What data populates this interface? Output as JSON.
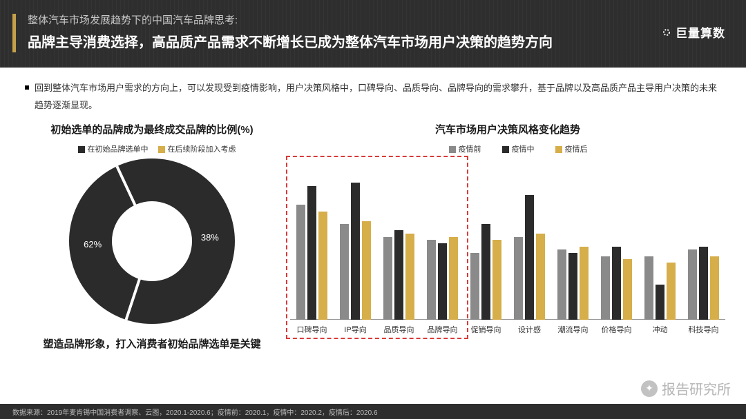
{
  "header": {
    "subtitle": "整体汽车市场发展趋势下的中国汽车品牌思考:",
    "title": "品牌主导消费选择，高品质产品需求不断增长已成为整体汽车市场用户决策的趋势方向",
    "logo_text": "巨量算数",
    "accent_color": "#c5a04b",
    "bg_color": "#2e2e2e"
  },
  "body_text": "回到整体汽车市场用户需求的方向上，可以发现受到疫情影响，用户决策风格中，口碑导向、品质导向、品牌导向的需求攀升，基于品牌以及高品质产品主导用户决策的未来趋势逐渐显现。",
  "donut": {
    "title": "初始选单的品牌成为最终成交品牌的比例(%)",
    "legend": [
      {
        "label": "在初始品牌选单中",
        "color": "#2b2b2b"
      },
      {
        "label": "在后续阶段加入考虑",
        "color": "#d6ae4a"
      }
    ],
    "slices": [
      {
        "label": "62%",
        "value": 62,
        "color": "#2b2b2b"
      },
      {
        "label": "38%",
        "value": 38,
        "color": "#d6ae4a"
      }
    ],
    "start_angle_deg": 155,
    "hole_ratio": 0.48,
    "caption": "塑造品牌形象，打入消费者初始品牌选单是关键"
  },
  "bars": {
    "title": "汽车市场用户决策风格变化趋势",
    "series": [
      {
        "label": "疫情前",
        "color": "#8a8a8a"
      },
      {
        "label": "疫情中",
        "color": "#2b2b2b"
      },
      {
        "label": "疫情后",
        "color": "#d6ae4a"
      }
    ],
    "y_max": 100,
    "categories": [
      {
        "label": "口碑导向",
        "values": [
          72,
          84,
          68
        ],
        "highlight": true
      },
      {
        "label": "IP导向",
        "values": [
          60,
          86,
          62
        ],
        "highlight": true
      },
      {
        "label": "品质导向",
        "values": [
          52,
          56,
          54
        ],
        "highlight": true
      },
      {
        "label": "品牌导向",
        "values": [
          50,
          48,
          52
        ],
        "highlight": true
      },
      {
        "label": "促销导向",
        "values": [
          42,
          60,
          50
        ],
        "highlight": false
      },
      {
        "label": "设计感",
        "values": [
          52,
          78,
          54
        ],
        "highlight": false
      },
      {
        "label": "潮流导向",
        "values": [
          44,
          42,
          46
        ],
        "highlight": false
      },
      {
        "label": "价格导向",
        "values": [
          40,
          46,
          38
        ],
        "highlight": false
      },
      {
        "label": "冲动",
        "values": [
          40,
          22,
          36
        ],
        "highlight": false
      },
      {
        "label": "科技导向",
        "values": [
          44,
          46,
          40
        ],
        "highlight": false
      }
    ],
    "highlight_border_color": "#d93a3a"
  },
  "footer": "数据来源：2019年麦肯锡中国消费者调察、云图，2020.1-2020.6；疫情前：2020.1，疫情中：2020.2，疫情后：2020.6",
  "watermark": "报告研究所"
}
